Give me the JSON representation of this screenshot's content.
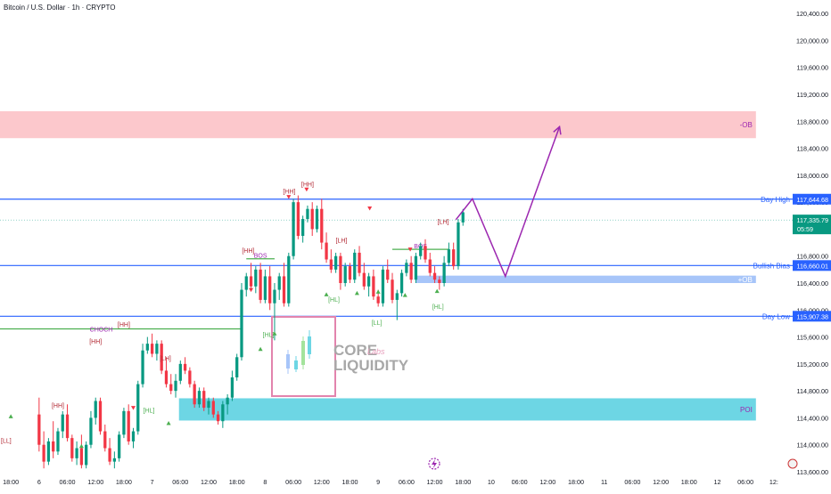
{
  "title": "Bitcoin / U.S. Dollar · 1h · CRYPTO",
  "colors": {
    "up": "#089981",
    "down": "#f23645",
    "hline": "#2962ff",
    "choch": "#4caf50",
    "label_box": "#2962ff",
    "price_box": "#089981",
    "ob_top": "#fcc8cc",
    "ob_bull": "#a7c5f9",
    "poi": "#6dd6e4",
    "arrow": "#9c27b0",
    "annot_purple": "#9c27b0",
    "hh_label": "#b22833",
    "hl_label": "#4caf50",
    "logo_frame": "#e284ad"
  },
  "chart_data": {
    "type": "candlestick",
    "title": "Bitcoin / U.S. Dollar · 1h · CRYPTO",
    "ylim": [
      113600,
      120600
    ],
    "y_ticks": [
      113600,
      114000,
      114400,
      114800,
      115200,
      115600,
      116000,
      116400,
      116800,
      117200,
      117600,
      118000,
      118400,
      118800,
      119200,
      119600,
      120000,
      120400
    ],
    "y_tick_labels": [
      "113,600.00",
      "114,000.00",
      "114,400.00",
      "114,800.00",
      "115,200.00",
      "115,600.00",
      "116,000.00",
      "116,400.00",
      "116,800.00",
      "117,200.00",
      "117,600.00",
      "118,000.00",
      "118,400.00",
      "118,800.00",
      "119,200.00",
      "119,600.00",
      "120,000.00",
      "120,400.00"
    ],
    "x_tick_labels": [
      "18:00",
      "6",
      "06:00",
      "12:00",
      "18:00",
      "7",
      "06:00",
      "12:00",
      "18:00",
      "8",
      "06:00",
      "12:00",
      "18:00",
      "9",
      "06:00",
      "12:00",
      "18:00",
      "10",
      "06:00",
      "12:00",
      "18:00",
      "11",
      "06:00",
      "12:00",
      "18:00",
      "12",
      "06:00",
      "12:"
    ],
    "x_tick_positions": [
      -6,
      0,
      6,
      12,
      18,
      24,
      30,
      36,
      42,
      48,
      54,
      60,
      66,
      72,
      78,
      84,
      90,
      96,
      102,
      108,
      114,
      120,
      126,
      132,
      138,
      144,
      150,
      156
    ],
    "x_range": [
      -8.3,
      160
    ],
    "candles": [
      [
        114450,
        114700,
        113900,
        114000
      ],
      [
        114000,
        114200,
        113650,
        113750
      ],
      [
        113750,
        114100,
        113700,
        114050
      ],
      [
        114050,
        114350,
        113800,
        113900
      ],
      [
        113900,
        114250,
        113850,
        114200
      ],
      [
        114200,
        114500,
        114100,
        114450
      ],
      [
        114450,
        114600,
        114050,
        114100
      ],
      [
        114100,
        114150,
        113750,
        113800
      ],
      [
        113800,
        114050,
        113700,
        113950
      ],
      [
        113950,
        114150,
        113650,
        113700
      ],
      [
        113700,
        114050,
        113650,
        114000
      ],
      [
        114000,
        114500,
        113950,
        114400
      ],
      [
        114400,
        114700,
        114300,
        114650
      ],
      [
        114650,
        114700,
        114150,
        114200
      ],
      [
        114200,
        114300,
        113900,
        113950
      ],
      [
        113950,
        114100,
        113700,
        113750
      ],
      [
        113750,
        113900,
        113650,
        113800
      ],
      [
        113800,
        114200,
        113750,
        114150
      ],
      [
        114150,
        114550,
        114100,
        114500
      ],
      [
        114500,
        114600,
        114000,
        114050
      ],
      [
        114050,
        114250,
        113950,
        114200
      ],
      [
        114200,
        114950,
        114150,
        114900
      ],
      [
        114900,
        115500,
        114850,
        115400
      ],
      [
        115400,
        115600,
        115350,
        115500
      ],
      [
        115500,
        115650,
        115300,
        115350
      ],
      [
        115350,
        115550,
        115250,
        115500
      ],
      [
        115500,
        115550,
        115050,
        115100
      ],
      [
        115100,
        115300,
        114850,
        114900
      ],
      [
        114900,
        115050,
        114750,
        114800
      ],
      [
        114800,
        115050,
        114700,
        114950
      ],
      [
        114950,
        115250,
        114900,
        115200
      ],
      [
        115200,
        115300,
        115050,
        115100
      ],
      [
        115100,
        115150,
        114850,
        114900
      ],
      [
        114900,
        114950,
        114550,
        114600
      ],
      [
        114600,
        114850,
        114550,
        114800
      ],
      [
        114800,
        114850,
        114500,
        114550
      ],
      [
        114550,
        114700,
        114450,
        114650
      ],
      [
        114650,
        114700,
        114400,
        114450
      ],
      [
        114450,
        114500,
        114300,
        114350
      ],
      [
        114350,
        114650,
        114250,
        114600
      ],
      [
        114600,
        114750,
        114450,
        114700
      ],
      [
        114700,
        115100,
        114650,
        115000
      ],
      [
        115000,
        115350,
        114950,
        115300
      ],
      [
        115300,
        116400,
        115250,
        116300
      ],
      [
        116300,
        116550,
        116200,
        116500
      ],
      [
        116500,
        116700,
        116300,
        116350
      ],
      [
        116350,
        116650,
        116250,
        116600
      ],
      [
        116600,
        116700,
        116100,
        116150
      ],
      [
        116150,
        116600,
        116100,
        116500
      ],
      [
        116500,
        116650,
        116000,
        116100
      ],
      [
        116100,
        116400,
        115550,
        116300
      ],
      [
        116300,
        116550,
        116150,
        116500
      ],
      [
        116500,
        116700,
        116050,
        116100
      ],
      [
        116100,
        116850,
        116050,
        116800
      ],
      [
        116800,
        117650,
        116750,
        117600
      ],
      [
        117600,
        117700,
        117050,
        117100
      ],
      [
        117100,
        117400,
        117000,
        117350
      ],
      [
        117350,
        117550,
        117300,
        117500
      ],
      [
        117500,
        117600,
        117100,
        117200
      ],
      [
        117200,
        117550,
        117150,
        117500
      ],
      [
        117500,
        117650,
        116900,
        117000
      ],
      [
        117000,
        117150,
        116700,
        116750
      ],
      [
        116750,
        116900,
        116550,
        116600
      ],
      [
        116600,
        116850,
        116550,
        116800
      ],
      [
        116800,
        116850,
        116300,
        116400
      ],
      [
        116400,
        116700,
        116350,
        116650
      ],
      [
        116650,
        116700,
        116400,
        116450
      ],
      [
        116450,
        116900,
        116400,
        116850
      ],
      [
        116850,
        116950,
        116500,
        116550
      ],
      [
        116550,
        116700,
        116300,
        116350
      ],
      [
        116350,
        116550,
        116200,
        116500
      ],
      [
        116500,
        116600,
        116150,
        116200
      ],
      [
        116200,
        116300,
        116050,
        116100
      ],
      [
        116100,
        116650,
        116050,
        116600
      ],
      [
        116600,
        116750,
        116400,
        116450
      ],
      [
        116450,
        116550,
        116100,
        116150
      ],
      [
        116150,
        116300,
        115850,
        116250
      ],
      [
        116250,
        116600,
        116200,
        116550
      ],
      [
        116550,
        116750,
        116500,
        116700
      ],
      [
        116700,
        116800,
        116400,
        116450
      ],
      [
        116450,
        116850,
        116400,
        116800
      ],
      [
        116800,
        117000,
        116750,
        116950
      ],
      [
        116950,
        117050,
        116700,
        116750
      ],
      [
        116750,
        116850,
        116500,
        116550
      ],
      [
        116550,
        116650,
        116400,
        116450
      ],
      [
        116450,
        116500,
        116300,
        116400
      ],
      [
        116400,
        116800,
        116350,
        116700
      ],
      [
        116700,
        117000,
        116650,
        116900
      ],
      [
        116900,
        117000,
        116600,
        116650
      ],
      [
        116650,
        117350,
        116600,
        117300
      ],
      [
        117300,
        117500,
        117250,
        117450
      ]
    ],
    "hlines": [
      {
        "price": 117644.68,
        "label": "Day High",
        "value_label": "117,644.68"
      },
      {
        "price": 116660.01,
        "label": "Bullish Bias",
        "value_label": "116,660.01"
      },
      {
        "price": 115907.38,
        "label": "Day Low",
        "value_label": "115,907.38"
      }
    ],
    "current_price": {
      "price": 117335.79,
      "value_label": "117,335.79",
      "countdown": "05:59"
    },
    "zones": [
      {
        "label": "-OB",
        "x0": -8.3,
        "x1": 152.2,
        "y0": 118550,
        "y1": 118950,
        "kind": "bear"
      },
      {
        "label": "+OB",
        "x0": 80,
        "x1": 152.2,
        "y0": 116400,
        "y1": 116510,
        "kind": "bull"
      },
      {
        "label": "POI",
        "x0": 29.7,
        "x1": 152.2,
        "y0": 114360,
        "y1": 114690,
        "kind": "poi"
      }
    ],
    "choch": {
      "label": "CHOCH",
      "price": 115720,
      "x0": -8.3,
      "x1": 43
    },
    "bos": [
      {
        "label": "BOS",
        "price": 116760,
        "x0": 44,
        "x1": 50
      },
      {
        "label": "BOS",
        "price": 116900,
        "x0": 75,
        "x1": 87
      }
    ],
    "projection": [
      [
        88.5,
        117340
      ],
      [
        92,
        117650
      ],
      [
        99,
        116500
      ],
      [
        110.5,
        118720
      ]
    ],
    "swing_labels": [
      {
        "text": "HH",
        "x": 4,
        "y": 114550,
        "kind": "high"
      },
      {
        "text": "HH",
        "x": 12,
        "y": 115500,
        "kind": "high"
      },
      {
        "text": "HH",
        "x": 18,
        "y": 115750,
        "kind": "high"
      },
      {
        "text": "LH",
        "x": 26.8,
        "y": 115250,
        "kind": "high"
      },
      {
        "text": "HH",
        "x": 44.4,
        "y": 116850,
        "kind": "high"
      },
      {
        "text": "HH",
        "x": 53.1,
        "y": 117730,
        "kind": "high"
      },
      {
        "text": "HH",
        "x": 57,
        "y": 117830,
        "kind": "high"
      },
      {
        "text": "LH",
        "x": 64.2,
        "y": 117000,
        "kind": "high"
      },
      {
        "text": "LH",
        "x": 85.8,
        "y": 117280,
        "kind": "high"
      },
      {
        "text": "LL",
        "x": -7,
        "y": 114030,
        "kind": "high"
      },
      {
        "text": "HL",
        "x": 23.3,
        "y": 114480,
        "kind": "low"
      },
      {
        "text": "HL",
        "x": 48.7,
        "y": 115600,
        "kind": "low"
      },
      {
        "text": "HL",
        "x": 62.6,
        "y": 116120,
        "kind": "low"
      },
      {
        "text": "LL",
        "x": 71.7,
        "y": 115780,
        "kind": "low"
      },
      {
        "text": "HL",
        "x": 84.7,
        "y": 116020,
        "kind": "low"
      }
    ],
    "up_markers": [
      [
        -6,
        114420
      ],
      [
        9,
        113980
      ],
      [
        27.5,
        114320
      ],
      [
        50,
        115650
      ],
      [
        61,
        116230
      ],
      [
        67.5,
        116250
      ],
      [
        72,
        116270
      ],
      [
        77.7,
        116220
      ],
      [
        84.5,
        116280
      ],
      [
        47,
        115420
      ]
    ],
    "down_markers": [
      [
        20,
        114550
      ],
      [
        45,
        116300
      ],
      [
        53,
        117680
      ],
      [
        56.8,
        117790
      ],
      [
        70.2,
        117510
      ],
      [
        78.8,
        116900
      ],
      [
        1,
        113400
      ]
    ]
  },
  "logo": {
    "line1": "CORE",
    "line2": "LIQUIDITY",
    "script": "Labs"
  }
}
